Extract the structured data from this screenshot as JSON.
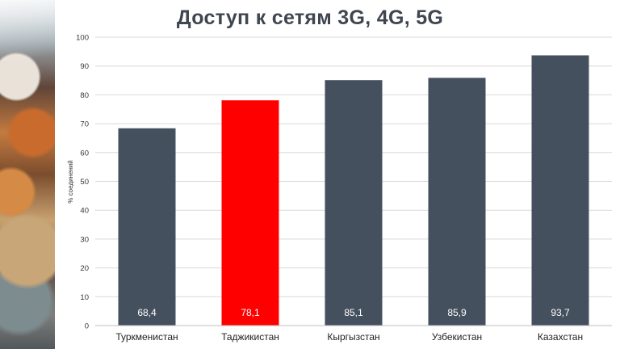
{
  "chart_data": {
    "type": "bar",
    "title": "Доступ к сетям 3G, 4G, 5G",
    "ylabel": "% соединений",
    "xlabel": "",
    "ylim": [
      0,
      100
    ],
    "yticks": [
      0,
      10,
      20,
      30,
      40,
      50,
      60,
      70,
      80,
      90,
      100
    ],
    "grid": true,
    "categories": [
      "Туркменистан",
      "Таджикистан",
      "Кыргызстан",
      "Узбекистан",
      "Казахстан"
    ],
    "values": [
      68.4,
      78.1,
      85.1,
      85.9,
      93.7
    ],
    "value_labels": [
      "68,4",
      "78,1",
      "85,1",
      "85,9",
      "93,7"
    ],
    "colors": [
      "#45505f",
      "#ff0000",
      "#45505f",
      "#45505f",
      "#45505f"
    ]
  }
}
